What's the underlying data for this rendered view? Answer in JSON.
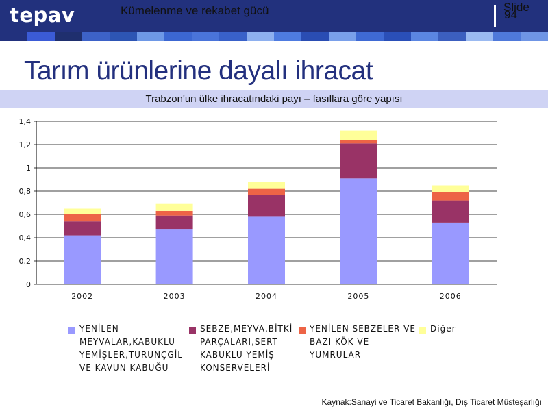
{
  "header": {
    "logo": "tepav",
    "title": "Kümelenme ve rekabet gücü",
    "slide_label": "Slide",
    "slide_number": "94"
  },
  "page_title": "Tarım ürünlerine dayalı ihracat",
  "colors": {
    "header_bg": "#22317d",
    "title_color": "#23307e",
    "subtitle_bg": "#cfd3f4",
    "stripe": [
      "#22317d",
      "#3b5bd6",
      "#1f2f6e",
      "#3d62c8",
      "#2d55b4",
      "#6e98e6",
      "#3c67d2",
      "#4a74da",
      "#3961c9",
      "#8eb0ef",
      "#4e7be0",
      "#2a4db3",
      "#7aa0ea",
      "#3f6ad4",
      "#2a4fb8",
      "#5b86e2",
      "#3c5fbf",
      "#9bbaf1",
      "#4f79da",
      "#6f95e5"
    ]
  },
  "chart_data": {
    "type": "bar",
    "stacked": true,
    "title": "Trabzon'un ülke ihracatındaki payı – fasıllara göre yapısı",
    "xlabel": "",
    "ylabel": "",
    "categories": [
      "2002",
      "2003",
      "2004",
      "2005",
      "2006"
    ],
    "ylim": [
      0,
      1.4
    ],
    "yticks": [
      "0",
      "0,2",
      "0,4",
      "0,6",
      "0,8",
      "1",
      "1,2",
      "1,4"
    ],
    "grid": true,
    "legend_position": "bottom",
    "series": [
      {
        "name": "YENİLEN MEYVALAR,KABUKLU YEMİŞLER,TURUNÇGİL VE KAVUN KABUĞU",
        "color": "#9999ff",
        "values": [
          0.42,
          0.47,
          0.58,
          0.91,
          0.53
        ]
      },
      {
        "name": "SEBZE,MEYVA,BİTKİ PARÇALARI,SERT KABUKLU YEMİŞ KONSERVELERİ",
        "color": "#993366",
        "values": [
          0.12,
          0.12,
          0.19,
          0.3,
          0.19
        ]
      },
      {
        "name": "YENİLEN SEBZELER VE BAZI KÖK VE YUMRULAR",
        "color": "#ed6446",
        "values": [
          0.06,
          0.04,
          0.05,
          0.03,
          0.07
        ]
      },
      {
        "name": "Diğer",
        "color": "#ffff99",
        "values": [
          0.05,
          0.06,
          0.06,
          0.08,
          0.06
        ]
      }
    ]
  },
  "legend_lines": [
    [
      "YENİLEN",
      "MEYVALAR,KABUKLU",
      "YEMİŞLER,TURUNÇGİL",
      "VE KAVUN KABUĞU"
    ],
    [
      "SEBZE,MEYVA,BİTKİ",
      "PARÇALARI,SERT",
      "KABUKLU YEMİŞ",
      "KONSERVELERİ"
    ],
    [
      "YENİLEN SEBZELER VE",
      "BAZI KÖK VE",
      "YUMRULAR"
    ],
    [
      "Diğer"
    ]
  ],
  "source": "Kaynak:Sanayi ve Ticaret Bakanlığı, Dış Ticaret Müsteşarlığı"
}
